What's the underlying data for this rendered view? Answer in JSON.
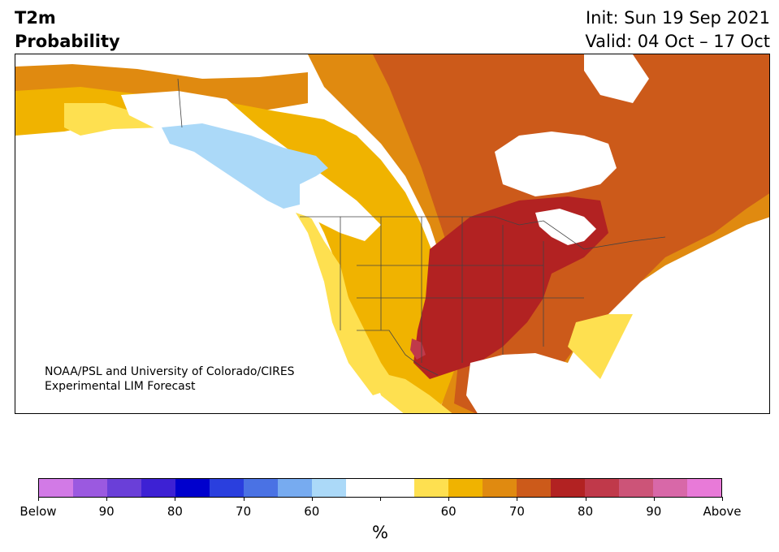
{
  "header": {
    "title_line1": "T2m",
    "title_line2": "Probability",
    "init": "Init: Sun 19 Sep 2021",
    "valid": "Valid: 04 Oct – 17 Oct"
  },
  "map": {
    "credit_line1": "NOAA/PSL and University of Colorado/CIRES",
    "credit_line2": "Experimental LIM Forecast",
    "region": "North America",
    "variable": "2-meter temperature probability"
  },
  "colorbar": {
    "unit": "%",
    "colors": [
      "#d27ae6",
      "#9b59e0",
      "#6a3fd8",
      "#3d21d4",
      "#0000cd",
      "#2a3fde",
      "#4a72e4",
      "#77abf0",
      "#abd9f8",
      "#ffffff",
      "#ffffff",
      "#fee050",
      "#f0b300",
      "#e08a10",
      "#cc5a1a",
      "#b22222",
      "#c0394a",
      "#cc5478",
      "#d868a8",
      "#e87ad8"
    ],
    "tick_labels": [
      "Below",
      "90",
      "80",
      "70",
      "60",
      "",
      "60",
      "70",
      "80",
      "90",
      "Above"
    ]
  }
}
